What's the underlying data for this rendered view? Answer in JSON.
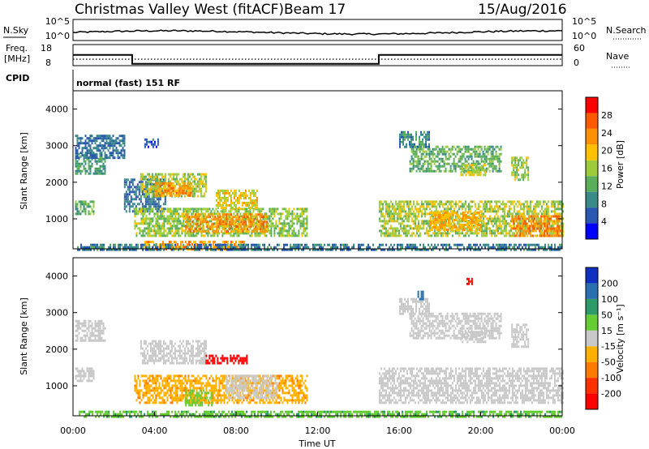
{
  "header": {
    "station": "Christmas Valley West (fitACF)",
    "beam": "Beam 17",
    "date": "15/Aug/2016"
  },
  "noise_panel": {
    "left_label": "N.Sky",
    "right_label": "N.Search",
    "left_ticks": [
      "10^5",
      "10^0"
    ],
    "right_ticks": [
      "10^5",
      "10^0"
    ]
  },
  "freq_panel": {
    "left_label_1": "Freq.",
    "left_label_2": "[MHz]",
    "right_label": "Nave",
    "left_ticks": [
      "18",
      "8"
    ],
    "right_ticks": [
      "60",
      "0"
    ],
    "freq_segments": [
      {
        "from_hour": 0.0,
        "to_hour": 2.9,
        "mhz": 15.4
      },
      {
        "from_hour": 2.9,
        "to_hour": 15.0,
        "mhz": 9.3
      },
      {
        "from_hour": 15.0,
        "to_hour": 24.0,
        "mhz": 15.4
      }
    ],
    "nave_level": 20
  },
  "cpid": {
    "label": "CPID",
    "text": "normal (fast) 151 RF"
  },
  "x_axis": {
    "label": "Time UT",
    "range_hours": [
      0,
      24
    ],
    "ticks": [
      "00:00",
      "04:00",
      "08:00",
      "12:00",
      "16:00",
      "20:00",
      "00:00"
    ]
  },
  "power_panel": {
    "ylabel": "Slant Range [km]",
    "yticks": [
      "4000",
      "3000",
      "2000",
      "1000"
    ],
    "colorbar_label": "Power [dB]",
    "colorbar_ticks": [
      "28",
      "24",
      "20",
      "16",
      "12",
      "8",
      "4"
    ],
    "colors": [
      "#0000ff",
      "#2858b0",
      "#3a8a8a",
      "#5aae5a",
      "#9ccc3c",
      "#ffc000",
      "#ff9000",
      "#ff5a00",
      "#ff0000"
    ]
  },
  "velocity_panel": {
    "ylabel": "Slant Range [km]",
    "yticks": [
      "4000",
      "3000",
      "2000",
      "1000"
    ],
    "colorbar_label": "Velocity [m s⁻¹]",
    "colorbar_ticks": [
      "200",
      "100",
      "50",
      "15",
      "-15",
      "-50",
      "-100",
      "-200"
    ],
    "colors": [
      "#1030c0",
      "#2a70b0",
      "#2e9a6a",
      "#66cc33",
      "#c8c8c8",
      "#ffb000",
      "#ff7a00",
      "#ff3000",
      "#ff0000"
    ]
  },
  "chart_data": [
    {
      "type": "heatmap",
      "title": "Power",
      "x_unit": "hours UT",
      "y_unit": "km",
      "xlim": [
        0,
        24
      ],
      "ylim": [
        180,
        4500
      ],
      "regions": [
        {
          "t0": 0.1,
          "t1": 1.6,
          "r0": 2250,
          "r1": 2800,
          "level": 12
        },
        {
          "t0": 0.1,
          "t1": 1.0,
          "r0": 1150,
          "r1": 1500,
          "level": 14
        },
        {
          "t0": 2.5,
          "t1": 4.5,
          "r0": 1200,
          "r1": 2100,
          "level": 8
        },
        {
          "t0": 3.3,
          "t1": 6.5,
          "r0": 1650,
          "r1": 2250,
          "level": 18
        },
        {
          "t0": 4.0,
          "t1": 5.8,
          "r0": 1650,
          "r1": 2000,
          "level": 26
        },
        {
          "t0": 3.0,
          "t1": 11.5,
          "r0": 550,
          "r1": 1300,
          "level": 17
        },
        {
          "t0": 5.5,
          "t1": 9.5,
          "r0": 650,
          "r1": 1150,
          "level": 26
        },
        {
          "t0": 7.0,
          "t1": 9.0,
          "r0": 1300,
          "r1": 1800,
          "level": 21
        },
        {
          "t0": 3.5,
          "t1": 8.5,
          "r0": 200,
          "r1": 400,
          "level": 25
        },
        {
          "t0": 0.2,
          "t1": 24.0,
          "r0": 180,
          "r1": 320,
          "level": 9
        },
        {
          "t0": 15.0,
          "t1": 24.0,
          "r0": 550,
          "r1": 1500,
          "level": 18
        },
        {
          "t0": 21.5,
          "t1": 24.0,
          "r0": 550,
          "r1": 1100,
          "level": 27
        },
        {
          "t0": 17.5,
          "t1": 20.0,
          "r0": 700,
          "r1": 1200,
          "level": 24
        },
        {
          "t0": 16.5,
          "t1": 21.0,
          "r0": 2300,
          "r1": 3000,
          "level": 14
        },
        {
          "t0": 19.0,
          "t1": 20.2,
          "r0": 2200,
          "r1": 2500,
          "level": 19
        },
        {
          "t0": 21.5,
          "t1": 22.3,
          "r0": 2100,
          "r1": 2700,
          "level": 17
        },
        {
          "t0": 16.0,
          "t1": 17.5,
          "r0": 3000,
          "r1": 3400,
          "level": 10
        },
        {
          "t0": 0.1,
          "t1": 2.5,
          "r0": 2700,
          "r1": 3300,
          "level": 8
        },
        {
          "t0": 3.5,
          "t1": 4.2,
          "r0": 3000,
          "r1": 3200,
          "level": 5
        }
      ]
    },
    {
      "type": "heatmap",
      "title": "Velocity",
      "x_unit": "hours UT",
      "y_unit": "km",
      "xlim": [
        0,
        24
      ],
      "ylim": [
        180,
        4500
      ],
      "regions": [
        {
          "t0": 0.1,
          "t1": 1.6,
          "r0": 2250,
          "r1": 2800,
          "v": 0
        },
        {
          "t0": 0.1,
          "t1": 1.0,
          "r0": 1150,
          "r1": 1500,
          "v": 0
        },
        {
          "t0": 3.3,
          "t1": 6.5,
          "r0": 1650,
          "r1": 2250,
          "v": 0
        },
        {
          "t0": 6.5,
          "t1": 8.5,
          "r0": 1600,
          "r1": 1850,
          "v": -220
        },
        {
          "t0": 3.0,
          "t1": 11.5,
          "r0": 550,
          "r1": 1300,
          "v": -40
        },
        {
          "t0": 5.5,
          "t1": 6.8,
          "r0": 500,
          "r1": 900,
          "v": 30
        },
        {
          "t0": 7.5,
          "t1": 10.0,
          "r0": 700,
          "r1": 1300,
          "v": 0
        },
        {
          "t0": 0.2,
          "t1": 24.0,
          "r0": 180,
          "r1": 320,
          "v": 40
        },
        {
          "t0": 15.0,
          "t1": 24.0,
          "r0": 550,
          "r1": 1500,
          "v": 0
        },
        {
          "t0": 16.5,
          "t1": 21.0,
          "r0": 2300,
          "r1": 3000,
          "v": 0
        },
        {
          "t0": 19.0,
          "t1": 20.2,
          "r0": 2200,
          "r1": 2500,
          "v": 0
        },
        {
          "t0": 21.5,
          "t1": 22.3,
          "r0": 2100,
          "r1": 2700,
          "v": 0
        },
        {
          "t0": 16.0,
          "t1": 17.5,
          "r0": 3000,
          "r1": 3400,
          "v": 0
        },
        {
          "t0": 16.9,
          "t1": 17.2,
          "r0": 3350,
          "r1": 3600,
          "v": 180
        },
        {
          "t0": 19.3,
          "t1": 19.6,
          "r0": 3800,
          "r1": 3950,
          "v": -200
        }
      ]
    }
  ]
}
